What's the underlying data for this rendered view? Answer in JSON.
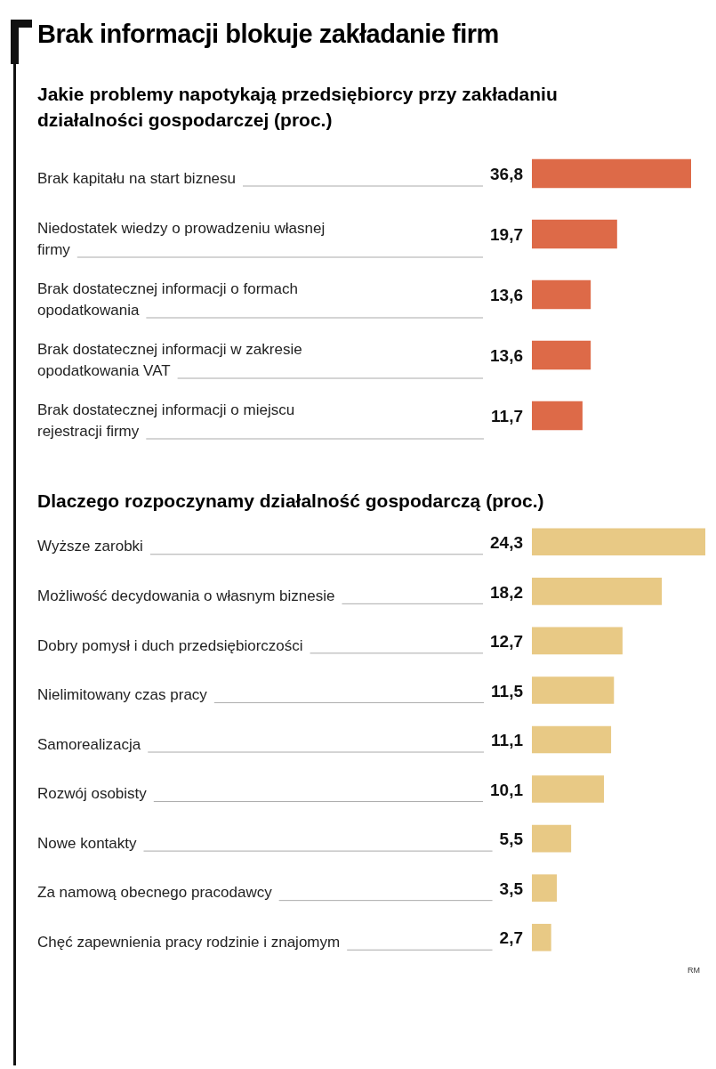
{
  "chart_data": [
    {
      "type": "bar",
      "orientation": "horizontal",
      "title": "Brak informacji blokuje zakładanie firm",
      "subtitle": "Jakie problemy napotykają przedsiębiorcy przy zakładaniu działalności gospodarczej (proc.)",
      "categories": [
        "Brak kapitału na start biznesu",
        "Niedostatek wiedzy o prowadzeniu własnej firmy",
        "Brak dostatecznej informacji o formach opodatkowania",
        "Brak dostatecznej informacji w zakresie opodatkowania VAT",
        "Brak dostatecznej informacji o miejscu rejestracji firmy"
      ],
      "values": [
        36.8,
        19.7,
        13.6,
        13.6,
        11.7
      ],
      "value_labels": [
        "36,8",
        "19,7",
        "13,6",
        "13,6",
        "11,7"
      ],
      "color": "#dd6a48",
      "legend": false
    },
    {
      "type": "bar",
      "orientation": "horizontal",
      "title": "Dlaczego rozpoczynamy działalność gospodarczą (proc.)",
      "categories": [
        "Wyższe zarobki",
        "Możliwość decydowania o własnym biznesie",
        "Dobry pomysł i duch przedsiębiorczości",
        "Nielimitowany czas pracy",
        "Samorealizacja",
        "Rozwój osobisty",
        "Nowe kontakty",
        "Za namową obecnego pracodawcy",
        "Chęć zapewnienia pracy rodzinie i znajomym"
      ],
      "values": [
        24.3,
        18.2,
        12.7,
        11.5,
        11.1,
        10.1,
        5.5,
        3.5,
        2.7
      ],
      "value_labels": [
        "24,3",
        "18,2",
        "12,7",
        "11,5",
        "11,1",
        "10,1",
        "5,5",
        "3,5",
        "2,7"
      ],
      "color": "#e8c985",
      "legend": false,
      "annotations": [
        "RM"
      ]
    }
  ]
}
